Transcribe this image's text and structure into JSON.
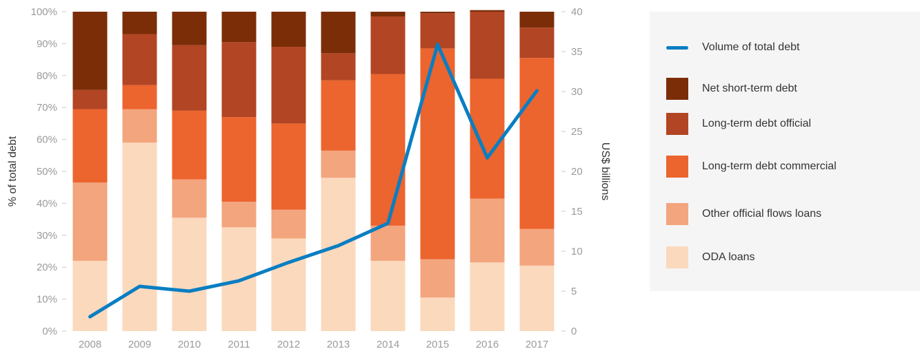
{
  "chart_data": {
    "type": "bar",
    "stacked": true,
    "categories": [
      "2008",
      "2009",
      "2010",
      "2011",
      "2012",
      "2013",
      "2014",
      "2015",
      "2016",
      "2017"
    ],
    "ylabel": "% of total debt",
    "y2label": "US$ billions",
    "ylim": [
      0,
      100
    ],
    "y2lim": [
      0,
      40
    ],
    "yticks": [
      "0%",
      "10%",
      "20%",
      "30%",
      "40%",
      "50%",
      "60%",
      "70%",
      "80%",
      "90%",
      "100%"
    ],
    "y2ticks": [
      "0",
      "5",
      "10",
      "15",
      "20",
      "25",
      "30",
      "35",
      "40"
    ],
    "series": [
      {
        "name": "ODA loans",
        "color": "#fbd9bd",
        "values": [
          22,
          59,
          35.5,
          32.5,
          29,
          48,
          22,
          10.5,
          21.5,
          20.5
        ]
      },
      {
        "name": "Other official flows loans",
        "color": "#f3a57e",
        "values": [
          24.5,
          10.5,
          12,
          8,
          9,
          8.5,
          11,
          12,
          20,
          11.5
        ]
      },
      {
        "name": "Long-term debt commercial",
        "color": "#ec642e",
        "values": [
          23,
          7.5,
          21.5,
          26.5,
          27,
          22,
          47.5,
          66,
          37.5,
          53.5
        ]
      },
      {
        "name": "Long-term debt official",
        "color": "#b24523",
        "values": [
          6,
          16,
          20.5,
          23.5,
          24,
          8.5,
          18,
          11,
          21,
          9.5
        ]
      },
      {
        "name": "Net short-term debt",
        "color": "#7b2d08",
        "values": [
          24.5,
          7,
          10.5,
          9.5,
          11,
          13,
          1.5,
          0.5,
          0.5,
          5
        ]
      }
    ],
    "line_series": {
      "name": "Volume of total debt",
      "axis": "right",
      "color": "#0a7ec2",
      "values": [
        1.8,
        5.6,
        5.0,
        6.3,
        8.6,
        10.7,
        13.5,
        35.9,
        21.7,
        30.1
      ]
    },
    "legend_position": "right"
  },
  "legend": {
    "items": [
      {
        "label": "Volume of total debt",
        "kind": "line",
        "color": "#0a7ec2"
      },
      {
        "label": "Net short-term debt",
        "kind": "box",
        "color": "#7b2d08"
      },
      {
        "label": "Long-term debt official",
        "kind": "box",
        "color": "#b24523"
      },
      {
        "label": "Long-term debt commercial",
        "kind": "box",
        "color": "#ec642e"
      },
      {
        "label": "Other official flows loans",
        "kind": "box",
        "color": "#f3a57e"
      },
      {
        "label": "ODA loans",
        "kind": "box",
        "color": "#fbd9bd"
      }
    ]
  }
}
